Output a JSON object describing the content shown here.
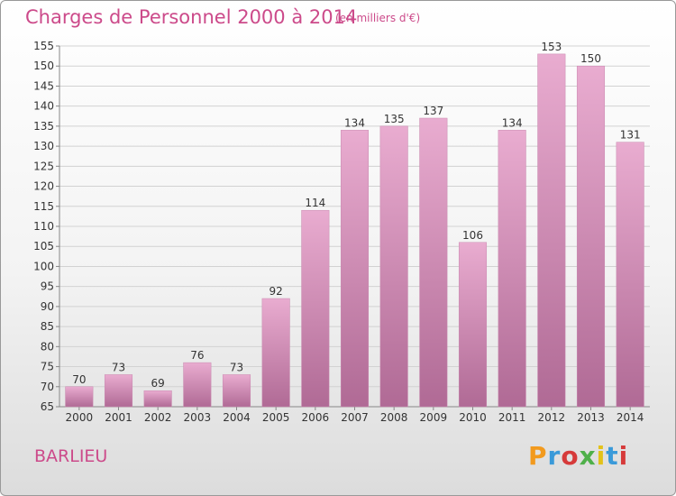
{
  "chart_data": {
    "type": "bar",
    "title": "Charges de Personnel 2000 à 2014",
    "subtitle": "(en milliers d'€)",
    "categories": [
      "2000",
      "2001",
      "2002",
      "2003",
      "2004",
      "2005",
      "2006",
      "2007",
      "2008",
      "2009",
      "2010",
      "2011",
      "2012",
      "2013",
      "2014"
    ],
    "values": [
      70,
      73,
      69,
      76,
      73,
      92,
      114,
      134,
      135,
      137,
      106,
      134,
      153,
      150,
      131
    ],
    "ylim": [
      65,
      155
    ],
    "yticks": [
      65,
      70,
      75,
      80,
      85,
      90,
      95,
      100,
      105,
      110,
      115,
      120,
      125,
      130,
      135,
      140,
      145,
      150,
      155
    ],
    "grid": true,
    "xlabel": "",
    "ylabel": ""
  },
  "footer": {
    "commune": "BARLIEU",
    "logo_text": "Proxiti"
  },
  "colors": {
    "title": "#cc4a8a",
    "bar_top": "#e9acd0",
    "bar_bottom": "#b06a95",
    "logo_letters": [
      "#f29a1e",
      "#3a9ad9",
      "#d63a3a",
      "#4fb04a",
      "#e3c21a",
      "#3a9ad9",
      "#d63a3a"
    ]
  }
}
